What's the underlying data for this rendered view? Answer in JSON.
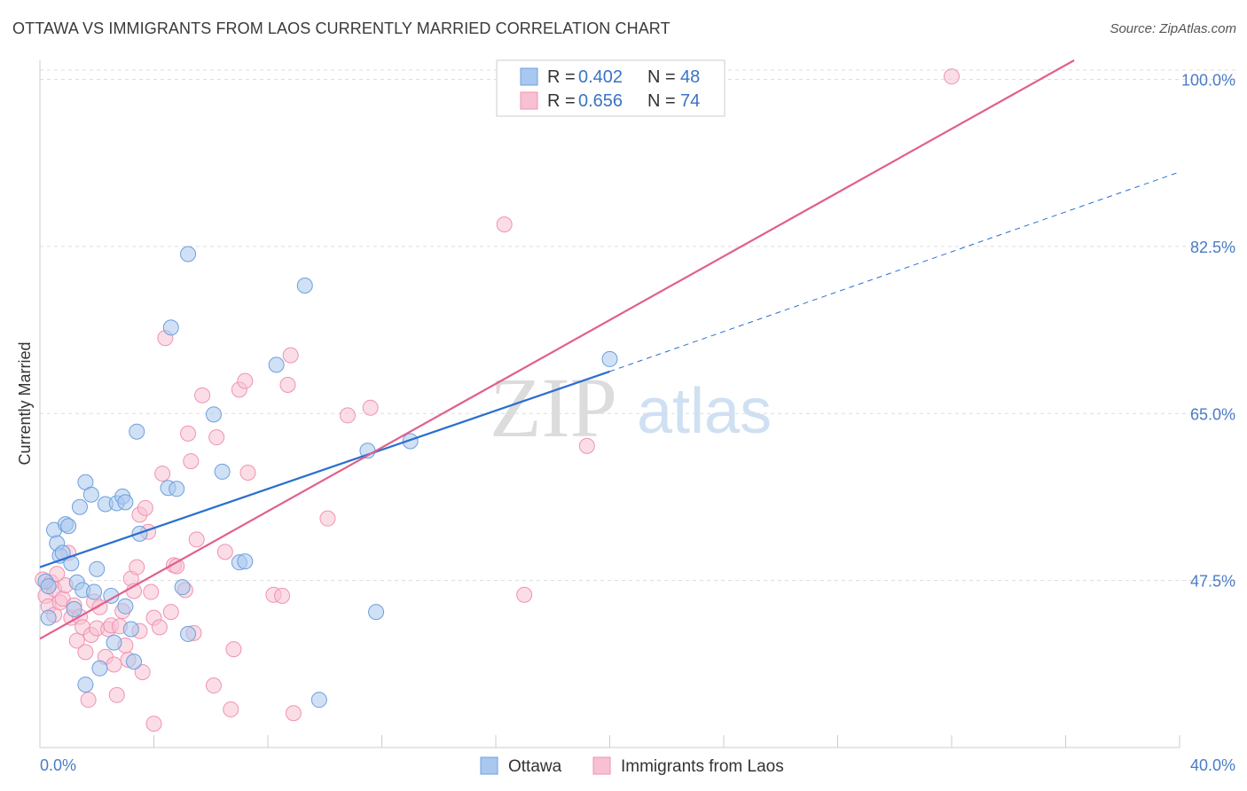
{
  "title": "OTTAWA VS IMMIGRANTS FROM LAOS CURRENTLY MARRIED CORRELATION CHART",
  "source": "Source: ZipAtlas.com",
  "watermark": {
    "zip": "ZIP",
    "atlas": "atlas"
  },
  "legend_top": {
    "rows": [
      {
        "r_label": "R =",
        "r_value": "0.402",
        "n_label": "N =",
        "n_value": "48"
      },
      {
        "r_label": "R =",
        "r_value": "0.656",
        "n_label": "N =",
        "n_value": "74"
      }
    ]
  },
  "colors": {
    "ottawa_fill": "#a9c8ef",
    "ottawa_stroke": "#6e9fdc",
    "ottawa_line": "#2a6fcf",
    "laos_fill": "#f7c1d2",
    "laos_stroke": "#ef93b2",
    "laos_line": "#e0608c",
    "grid": "#dddddd",
    "tick_text": "#4a7cc8"
  },
  "chart_data": {
    "type": "scatter",
    "title": "OTTAWA VS IMMIGRANTS FROM LAOS CURRENTLY MARRIED CORRELATION CHART",
    "xlabel": "",
    "ylabel": "Currently Married",
    "xlim": [
      0.0,
      40.0
    ],
    "ylim": [
      30.0,
      102.0
    ],
    "x_tick_labels": [
      "0.0%",
      "40.0%"
    ],
    "y_ticks": [
      47.5,
      65.0,
      82.5,
      100.0
    ],
    "y_tick_labels": [
      "47.5%",
      "65.0%",
      "82.5%",
      "100.0%"
    ],
    "grid": "horizontal dashed",
    "legend_position": "top-center and bottom-center",
    "series": [
      {
        "name": "Ottawa",
        "R": 0.402,
        "N": 48,
        "trend": {
          "x0": 0.0,
          "y0": 48.9,
          "x1": 20.0,
          "y1": 69.4,
          "dashed_to_x": 40.0,
          "dashed_to_y": 90.3
        },
        "points": [
          [
            0.2,
            47.4
          ],
          [
            0.3,
            46.9
          ],
          [
            0.3,
            43.6
          ],
          [
            0.5,
            52.8
          ],
          [
            0.6,
            51.4
          ],
          [
            0.7,
            50.1
          ],
          [
            0.8,
            50.4
          ],
          [
            0.9,
            53.4
          ],
          [
            1.0,
            53.2
          ],
          [
            1.1,
            49.3
          ],
          [
            1.2,
            44.5
          ],
          [
            1.3,
            47.3
          ],
          [
            1.4,
            55.2
          ],
          [
            1.5,
            46.5
          ],
          [
            1.6,
            36.6
          ],
          [
            1.6,
            57.8
          ],
          [
            1.8,
            56.5
          ],
          [
            1.9,
            46.3
          ],
          [
            2.0,
            48.7
          ],
          [
            2.1,
            38.3
          ],
          [
            2.3,
            55.5
          ],
          [
            2.5,
            45.9
          ],
          [
            2.6,
            41.0
          ],
          [
            2.7,
            55.6
          ],
          [
            2.9,
            56.3
          ],
          [
            3.0,
            55.7
          ],
          [
            3.2,
            42.4
          ],
          [
            3.3,
            39.0
          ],
          [
            3.4,
            63.1
          ],
          [
            3.5,
            52.4
          ],
          [
            4.5,
            57.2
          ],
          [
            4.6,
            74.0
          ],
          [
            4.8,
            57.1
          ],
          [
            5.0,
            46.8
          ],
          [
            5.2,
            41.9
          ],
          [
            5.2,
            81.7
          ],
          [
            6.1,
            64.9
          ],
          [
            6.4,
            58.9
          ],
          [
            7.0,
            49.4
          ],
          [
            7.2,
            49.5
          ],
          [
            8.3,
            70.1
          ],
          [
            9.3,
            78.4
          ],
          [
            9.8,
            35.0
          ],
          [
            11.5,
            61.1
          ],
          [
            11.8,
            44.2
          ],
          [
            13.0,
            62.1
          ],
          [
            20.0,
            70.7
          ],
          [
            3.0,
            44.8
          ]
        ]
      },
      {
        "name": "Immigrants from Laos",
        "R": 0.656,
        "N": 74,
        "trend": {
          "x0": 0.0,
          "y0": 41.4,
          "x1": 36.3,
          "y1": 102.0
        },
        "points": [
          [
            0.1,
            47.6
          ],
          [
            0.2,
            45.9
          ],
          [
            0.3,
            44.8
          ],
          [
            0.4,
            47.3
          ],
          [
            0.5,
            46.6
          ],
          [
            0.5,
            43.9
          ],
          [
            0.6,
            48.2
          ],
          [
            0.7,
            45.2
          ],
          [
            0.8,
            45.6
          ],
          [
            0.9,
            47.0
          ],
          [
            1.0,
            50.4
          ],
          [
            1.1,
            43.6
          ],
          [
            1.2,
            44.9
          ],
          [
            1.3,
            41.2
          ],
          [
            1.4,
            43.7
          ],
          [
            1.5,
            42.6
          ],
          [
            1.6,
            40.0
          ],
          [
            1.7,
            35.0
          ],
          [
            1.8,
            41.8
          ],
          [
            1.9,
            45.3
          ],
          [
            2.0,
            42.5
          ],
          [
            2.1,
            44.7
          ],
          [
            2.3,
            39.5
          ],
          [
            2.4,
            42.4
          ],
          [
            2.5,
            42.8
          ],
          [
            2.6,
            38.7
          ],
          [
            2.7,
            35.5
          ],
          [
            2.8,
            42.7
          ],
          [
            2.9,
            44.3
          ],
          [
            3.0,
            40.7
          ],
          [
            3.1,
            39.2
          ],
          [
            3.2,
            47.7
          ],
          [
            3.3,
            46.4
          ],
          [
            3.4,
            48.9
          ],
          [
            3.5,
            42.2
          ],
          [
            3.5,
            54.4
          ],
          [
            3.6,
            37.9
          ],
          [
            3.7,
            55.1
          ],
          [
            3.8,
            52.6
          ],
          [
            3.9,
            46.3
          ],
          [
            4.0,
            32.5
          ],
          [
            4.0,
            43.6
          ],
          [
            4.2,
            42.6
          ],
          [
            4.3,
            58.7
          ],
          [
            4.4,
            72.9
          ],
          [
            4.6,
            44.2
          ],
          [
            4.7,
            49.1
          ],
          [
            4.8,
            49.0
          ],
          [
            5.1,
            46.5
          ],
          [
            5.2,
            62.9
          ],
          [
            5.3,
            60.0
          ],
          [
            5.4,
            42.0
          ],
          [
            5.5,
            51.8
          ],
          [
            5.7,
            66.9
          ],
          [
            6.1,
            36.5
          ],
          [
            6.2,
            62.5
          ],
          [
            6.5,
            50.5
          ],
          [
            6.7,
            34.0
          ],
          [
            6.8,
            40.3
          ],
          [
            7.0,
            67.5
          ],
          [
            7.2,
            68.4
          ],
          [
            7.3,
            58.8
          ],
          [
            8.2,
            46.0
          ],
          [
            8.5,
            45.9
          ],
          [
            8.7,
            68.0
          ],
          [
            8.8,
            71.1
          ],
          [
            8.9,
            33.6
          ],
          [
            10.1,
            54.0
          ],
          [
            10.8,
            64.8
          ],
          [
            11.6,
            65.6
          ],
          [
            16.3,
            84.8
          ],
          [
            17.0,
            46.0
          ],
          [
            19.2,
            61.6
          ],
          [
            32.0,
            100.3
          ]
        ]
      }
    ]
  },
  "legend_bottom": {
    "items": [
      "Ottawa",
      "Immigrants from Laos"
    ]
  }
}
